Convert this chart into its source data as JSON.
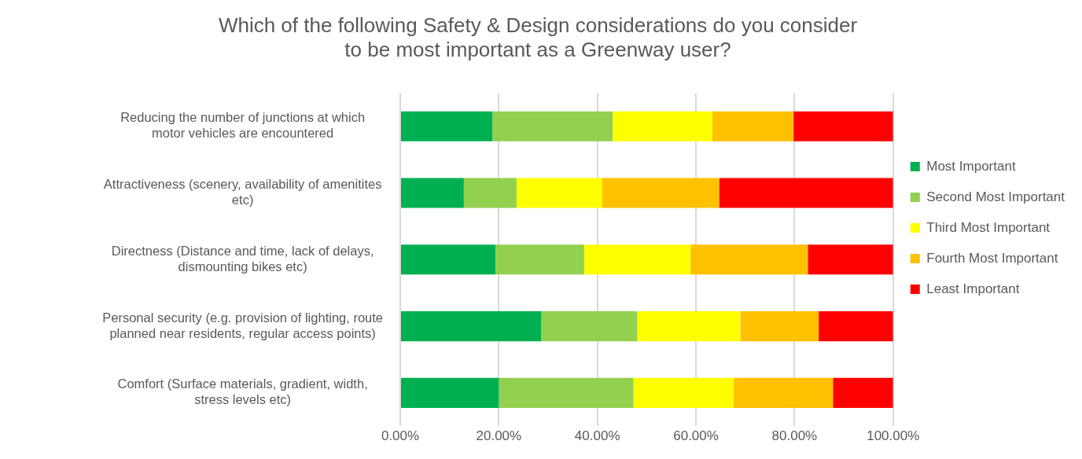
{
  "chart_data": {
    "type": "bar",
    "orientation": "horizontal",
    "stacked": true,
    "title": "Which of the following Safety & Design considerations do you consider\nto be most important as a Greenway user?",
    "categories": [
      "Reducing the number of junctions at which\nmotor vehicles are encountered",
      "Attractiveness (scenery, availability of amenitites\netc)",
      "Directness (Distance and time, lack of delays,\ndismounting bikes etc)",
      "Personal security (e.g. provision of lighting, route\nplanned near residents, regular access points)",
      "Comfort (Surface materials, gradient, width,\nstress levels etc)"
    ],
    "series": [
      {
        "name": "Most Important",
        "color": "#00b050",
        "values": [
          18.7,
          12.9,
          19.3,
          28.6,
          20.0
        ]
      },
      {
        "name": "Second Most Important",
        "color": "#92d050",
        "values": [
          24.4,
          10.7,
          18.0,
          19.5,
          27.3
        ]
      },
      {
        "name": "Third Most Important",
        "color": "#ffff00",
        "values": [
          20.2,
          17.4,
          21.6,
          20.9,
          20.3
        ]
      },
      {
        "name": "Fourth Most Important",
        "color": "#ffc000",
        "values": [
          16.5,
          23.7,
          23.8,
          15.9,
          20.2
        ]
      },
      {
        "name": "Least Important",
        "color": "#ff0000",
        "values": [
          20.2,
          35.3,
          17.3,
          15.1,
          12.2
        ]
      }
    ],
    "xlim": [
      0,
      100
    ],
    "xticks": [
      {
        "value": 0,
        "label": "0.00%"
      },
      {
        "value": 20,
        "label": "20.00%"
      },
      {
        "value": 40,
        "label": "40.00%"
      },
      {
        "value": 60,
        "label": "60.00%"
      },
      {
        "value": 80,
        "label": "80.00%"
      },
      {
        "value": 100,
        "label": "100.00%"
      }
    ],
    "grid": "x",
    "legend": "right"
  }
}
